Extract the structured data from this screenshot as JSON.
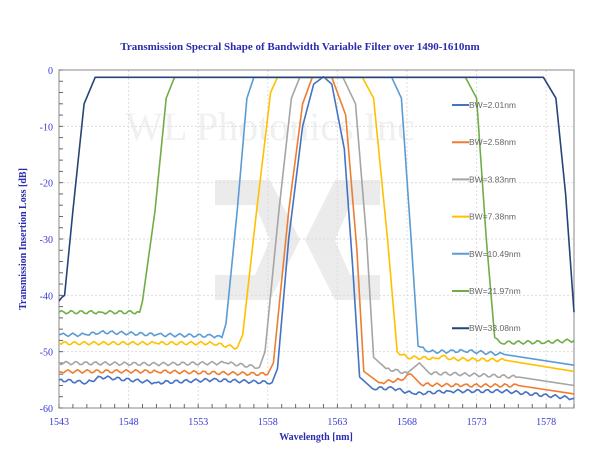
{
  "chart_data": {
    "type": "line",
    "title": "Transmission Specral Shape of Bandwidth Variable Filter over 1490-1610nm",
    "xlabel": "Wavelength [nm]",
    "ylabel": "Transmission Insertion Loss [dB]",
    "xlim": [
      1543,
      1580
    ],
    "ylim": [
      -60,
      0
    ],
    "xticks": [
      "1543",
      "1548",
      "1553",
      "1558",
      "1563",
      "1568",
      "1573",
      "1578"
    ],
    "yticks": [
      "0",
      "-10",
      "-20",
      "-30",
      "-40",
      "-50",
      "-60"
    ],
    "grid": true,
    "legend_position": "right",
    "watermark": "WL Photonics Inc",
    "series": [
      {
        "name": "BW=2.01nm",
        "color": "#4472c4",
        "points": [
          [
            1543,
            -55
          ],
          [
            1545,
            -55.5
          ],
          [
            1546,
            -54.5
          ],
          [
            1550,
            -55.5
          ],
          [
            1554,
            -55
          ],
          [
            1558.3,
            -55.5
          ],
          [
            1558.7,
            -53
          ],
          [
            1559.5,
            -30
          ],
          [
            1560.5,
            -10
          ],
          [
            1561.3,
            -2.5
          ],
          [
            1562,
            -1.2
          ],
          [
            1562.6,
            -2.5
          ],
          [
            1563.5,
            -14
          ],
          [
            1564.1,
            -35
          ],
          [
            1564.6,
            -54.5
          ],
          [
            1565.5,
            -56.5
          ],
          [
            1567,
            -56.5
          ],
          [
            1568.5,
            -57.5
          ],
          [
            1571,
            -57
          ],
          [
            1575,
            -57
          ],
          [
            1580,
            -58.3
          ]
        ]
      },
      {
        "name": "BW=2.58nm",
        "color": "#ed7d31",
        "points": [
          [
            1543,
            -53.5
          ],
          [
            1550,
            -53.5
          ],
          [
            1558,
            -54
          ],
          [
            1558.4,
            -52
          ],
          [
            1559.5,
            -25
          ],
          [
            1560.5,
            -6
          ],
          [
            1561.2,
            -1.3
          ],
          [
            1562.6,
            -1.3
          ],
          [
            1563.6,
            -8
          ],
          [
            1564.4,
            -32
          ],
          [
            1564.9,
            -53.5
          ],
          [
            1566,
            -55.5
          ],
          [
            1567.5,
            -55
          ],
          [
            1568.3,
            -54
          ],
          [
            1569,
            -55.8
          ],
          [
            1572,
            -56
          ],
          [
            1576,
            -56
          ],
          [
            1580,
            -57.5
          ]
        ]
      },
      {
        "name": "BW=3.83nm",
        "color": "#a5a5a5",
        "points": [
          [
            1543,
            -52
          ],
          [
            1550,
            -52.2
          ],
          [
            1555,
            -52
          ],
          [
            1557.4,
            -52.8
          ],
          [
            1557.8,
            -50
          ],
          [
            1558.8,
            -25
          ],
          [
            1559.7,
            -5
          ],
          [
            1560.3,
            -1.3
          ],
          [
            1563.4,
            -1.3
          ],
          [
            1564.3,
            -6
          ],
          [
            1565.1,
            -30
          ],
          [
            1565.6,
            -51
          ],
          [
            1566.5,
            -53
          ],
          [
            1568,
            -53.8
          ],
          [
            1568.9,
            -52
          ],
          [
            1569.6,
            -53.8
          ],
          [
            1572,
            -54
          ],
          [
            1576,
            -54.5
          ],
          [
            1580,
            -56
          ]
        ]
      },
      {
        "name": "BW=7.38nm",
        "color": "#ffc000",
        "points": [
          [
            1543,
            -48.5
          ],
          [
            1550,
            -48.5
          ],
          [
            1554,
            -48.5
          ],
          [
            1555.8,
            -49.3
          ],
          [
            1556.2,
            -47
          ],
          [
            1557.2,
            -25
          ],
          [
            1558.2,
            -4
          ],
          [
            1558.7,
            -1.3
          ],
          [
            1564.8,
            -1.3
          ],
          [
            1565.6,
            -5
          ],
          [
            1566.6,
            -30
          ],
          [
            1567.3,
            -50
          ],
          [
            1568,
            -51
          ],
          [
            1570,
            -51.2
          ],
          [
            1570.6,
            -50.7
          ],
          [
            1571.2,
            -51.3
          ],
          [
            1575,
            -51.5
          ],
          [
            1580,
            -53.5
          ]
        ]
      },
      {
        "name": "BW=10.49nm",
        "color": "#5b9bd5",
        "points": [
          [
            1543,
            -47
          ],
          [
            1545,
            -47
          ],
          [
            1546,
            -46.5
          ],
          [
            1550,
            -47
          ],
          [
            1554,
            -47.2
          ],
          [
            1554.7,
            -47.5
          ],
          [
            1555,
            -45
          ],
          [
            1555.8,
            -25
          ],
          [
            1556.5,
            -5
          ],
          [
            1557,
            -1.3
          ],
          [
            1566.9,
            -1.3
          ],
          [
            1567.6,
            -5
          ],
          [
            1568.3,
            -30
          ],
          [
            1568.8,
            -49
          ],
          [
            1569.5,
            -50
          ],
          [
            1571,
            -50
          ],
          [
            1572,
            -49.8
          ],
          [
            1575,
            -50.5
          ],
          [
            1580,
            -52.4
          ]
        ]
      },
      {
        "name": "BW=21.97nm",
        "color": "#70ad47",
        "points": [
          [
            1543,
            -43
          ],
          [
            1546,
            -43
          ],
          [
            1548.8,
            -43
          ],
          [
            1549,
            -41
          ],
          [
            1549.9,
            -25
          ],
          [
            1550.7,
            -5
          ],
          [
            1551.3,
            -1.3
          ],
          [
            1572.2,
            -1.3
          ],
          [
            1573,
            -5
          ],
          [
            1573.7,
            -30
          ],
          [
            1574.3,
            -47.5
          ],
          [
            1574.7,
            -48.4
          ],
          [
            1578,
            -48.3
          ],
          [
            1580,
            -48
          ]
        ]
      },
      {
        "name": "BW=33.08nm",
        "color": "#264478",
        "points": [
          [
            1543,
            -41
          ],
          [
            1543.4,
            -40
          ],
          [
            1544,
            -25
          ],
          [
            1544.8,
            -6
          ],
          [
            1545.6,
            -1.3
          ],
          [
            1577.8,
            -1.3
          ],
          [
            1578.7,
            -5
          ],
          [
            1579.4,
            -22
          ],
          [
            1580,
            -43
          ]
        ]
      }
    ]
  }
}
